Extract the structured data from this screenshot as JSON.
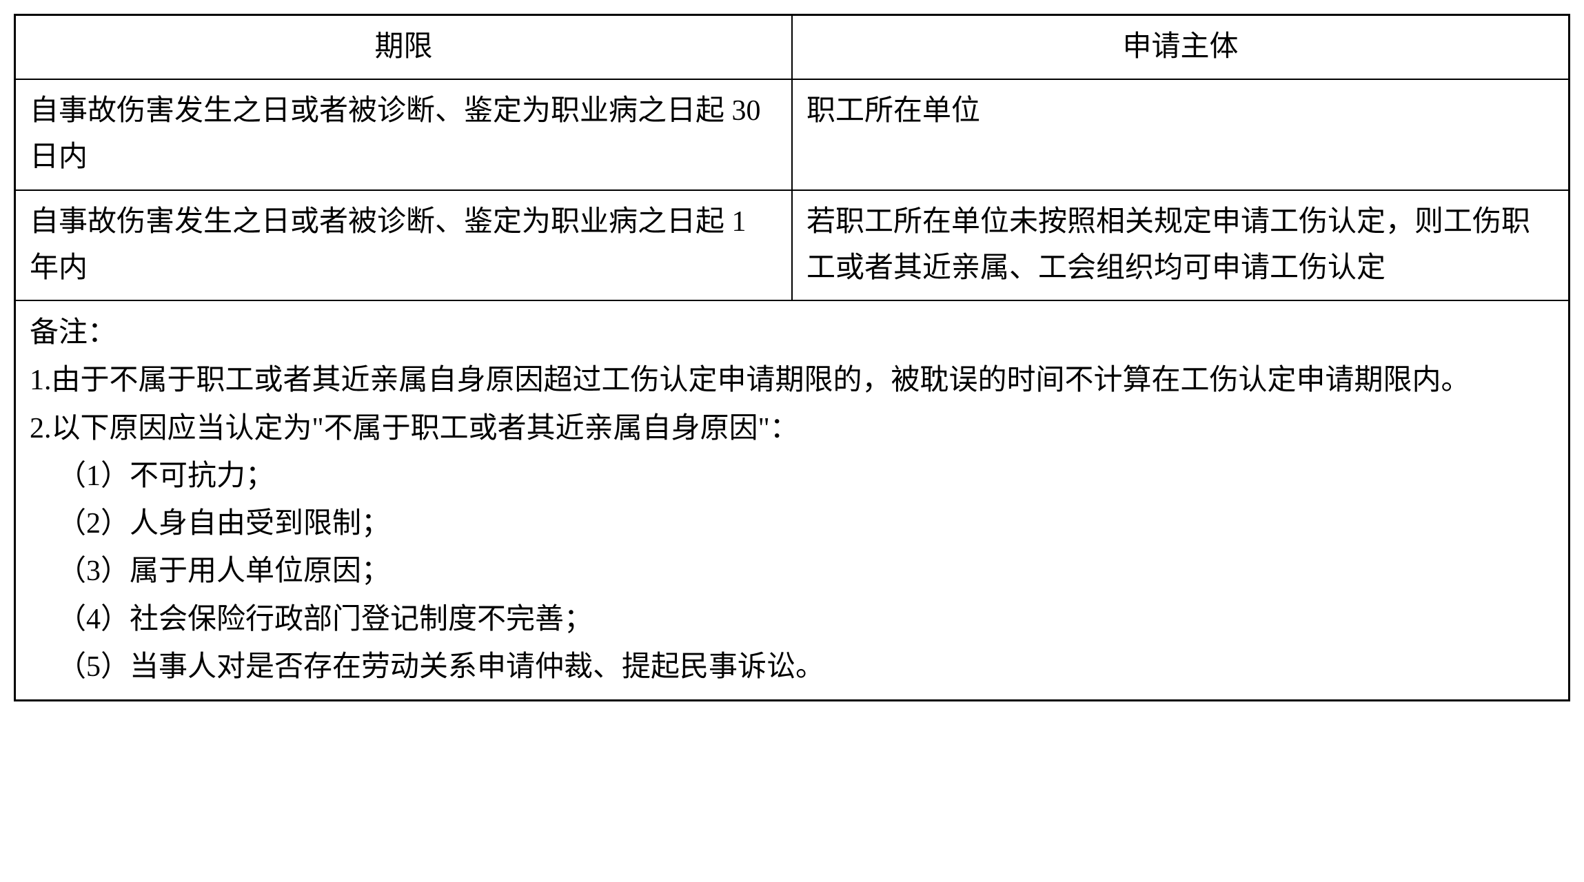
{
  "table": {
    "header": {
      "col1": "期限",
      "col2": "申请主体"
    },
    "rows": [
      {
        "col1": "自事故伤害发生之日或者被诊断、鉴定为职业病之日起 30 日内",
        "col2": "职工所在单位"
      },
      {
        "col1": "自事故伤害发生之日或者被诊断、鉴定为职业病之日起 1 年内",
        "col2": "若职工所在单位未按照相关规定申请工伤认定，则工伤职工或者其近亲属、工会组织均可申请工伤认定"
      }
    ],
    "notes": {
      "title": "备注：",
      "item1": "1.由于不属于职工或者其近亲属自身原因超过工伤认定申请期限的，被耽误的时间不计算在工伤认定申请期限内。",
      "item2": "2.以下原因应当认定为\"不属于职工或者其近亲属自身原因\"：",
      "sub1": "（1）不可抗力；",
      "sub2": "（2）人身自由受到限制；",
      "sub3": "（3）属于用人单位原因；",
      "sub4": "（4）社会保险行政部门登记制度不完善；",
      "sub5": "（5）当事人对是否存在劳动关系申请仲裁、提起民事诉讼。"
    }
  },
  "styling": {
    "border_color": "#000000",
    "background_color": "#ffffff",
    "text_color": "#000000",
    "font_family": "SimSun",
    "font_size_pt": 42,
    "line_height": 1.6,
    "border_width_outer": 3,
    "border_width_inner": 2,
    "col1_width_pct": 50,
    "col2_width_pct": 50
  }
}
